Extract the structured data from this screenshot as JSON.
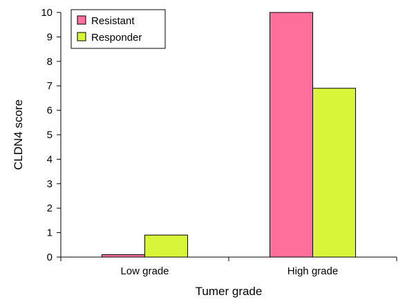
{
  "chart_data": {
    "type": "bar",
    "categories": [
      "Low grade",
      "High grade"
    ],
    "series": [
      {
        "name": "Resistant",
        "values": [
          0.1,
          10
        ],
        "color": "#ff6f9c"
      },
      {
        "name": "Responder",
        "values": [
          0.9,
          6.9
        ],
        "color": "#d9f53a"
      }
    ],
    "xlabel": "Tumer grade",
    "ylabel": "CLDN4 score",
    "ylim": [
      0,
      10
    ],
    "yticks": [
      "0",
      "1",
      "2",
      "3",
      "4",
      "5",
      "6",
      "7",
      "8",
      "9",
      "10"
    ],
    "grid": false,
    "legend_position": "top-left"
  }
}
